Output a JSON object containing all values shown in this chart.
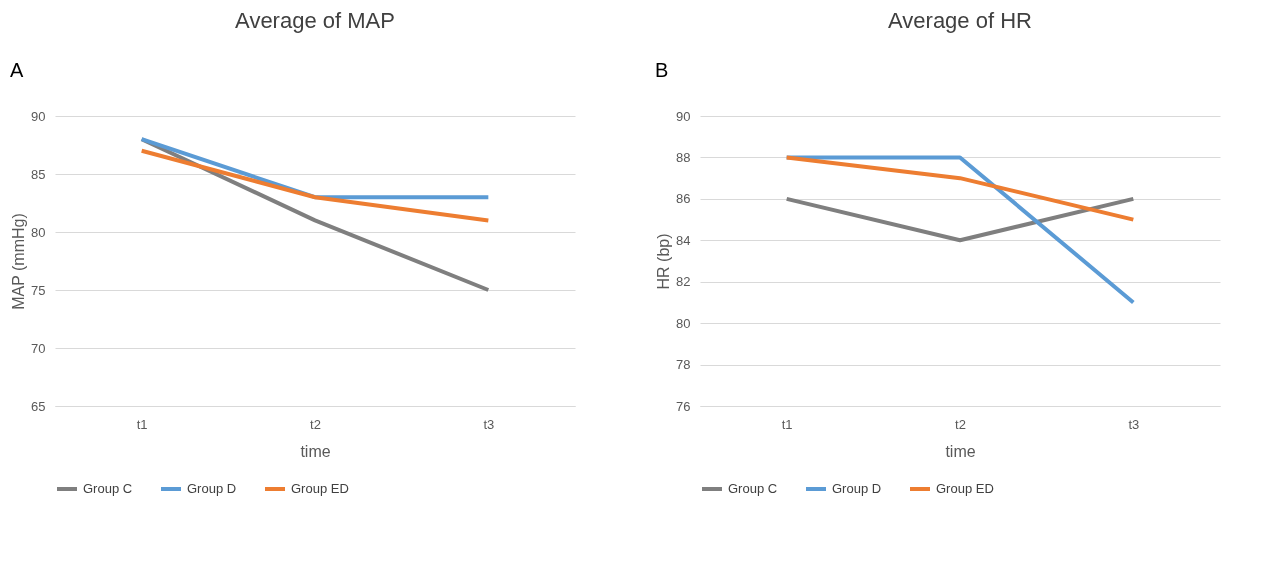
{
  "chart_data": [
    {
      "type": "line",
      "title": "Average of MAP",
      "xlabel": "time",
      "ylabel": "MAP (mmHg)",
      "annotations": [
        "A"
      ],
      "categories": [
        "t1",
        "t2",
        "t3"
      ],
      "ylim": [
        65,
        90
      ],
      "yticks": [
        65,
        70,
        75,
        80,
        85,
        90
      ],
      "grid": "y",
      "legend": "bottom",
      "series": [
        {
          "name": "Group C",
          "color": "#7f7f7f",
          "values": [
            88,
            81,
            75
          ]
        },
        {
          "name": "Group D",
          "color": "#5b9bd5",
          "values": [
            88,
            83,
            83
          ]
        },
        {
          "name": "Group ED",
          "color": "#ed7d31",
          "values": [
            87,
            83,
            81
          ]
        }
      ]
    },
    {
      "type": "line",
      "title": "Average of HR",
      "xlabel": "time",
      "ylabel": "HR (bp)",
      "annotations": [
        "B"
      ],
      "categories": [
        "t1",
        "t2",
        "t3"
      ],
      "ylim": [
        76,
        90
      ],
      "yticks": [
        76,
        78,
        80,
        82,
        84,
        86,
        88,
        90
      ],
      "grid": "y",
      "legend": "bottom",
      "series": [
        {
          "name": "Group C",
          "color": "#7f7f7f",
          "values": [
            86,
            84,
            86
          ]
        },
        {
          "name": "Group D",
          "color": "#5b9bd5",
          "values": [
            88,
            88,
            81
          ]
        },
        {
          "name": "Group ED",
          "color": "#ed7d31",
          "values": [
            88,
            87,
            85
          ]
        }
      ]
    }
  ]
}
